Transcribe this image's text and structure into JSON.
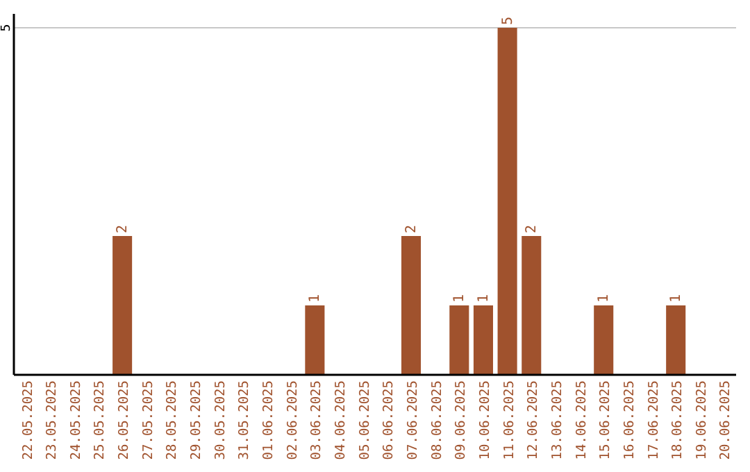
{
  "chart_data": {
    "type": "bar",
    "categories": [
      "22.05.2025",
      "23.05.2025",
      "24.05.2025",
      "25.05.2025",
      "26.05.2025",
      "27.05.2025",
      "28.05.2025",
      "29.05.2025",
      "30.05.2025",
      "31.05.2025",
      "01.06.2025",
      "02.06.2025",
      "03.06.2025",
      "04.06.2025",
      "05.06.2025",
      "06.06.2025",
      "07.06.2025",
      "08.06.2025",
      "09.06.2025",
      "10.06.2025",
      "11.06.2025",
      "12.06.2025",
      "13.06.2025",
      "14.06.2025",
      "15.06.2025",
      "16.06.2025",
      "17.06.2025",
      "18.06.2025",
      "19.06.2025",
      "20.06.2025"
    ],
    "values": [
      0,
      0,
      0,
      0,
      2,
      0,
      0,
      0,
      0,
      0,
      0,
      0,
      1,
      0,
      0,
      0,
      2,
      0,
      1,
      1,
      5,
      2,
      0,
      0,
      1,
      0,
      0,
      1,
      0,
      0
    ],
    "value_labels": [
      null,
      null,
      null,
      null,
      "2",
      null,
      null,
      null,
      null,
      null,
      null,
      null,
      "1",
      null,
      null,
      null,
      "2",
      null,
      "1",
      "1",
      "5",
      "2",
      null,
      null,
      "1",
      null,
      null,
      "1",
      null,
      null
    ],
    "color": "#a0522d",
    "ylim": [
      0,
      5.2
    ],
    "yticks": [
      5
    ],
    "grid": "y"
  }
}
